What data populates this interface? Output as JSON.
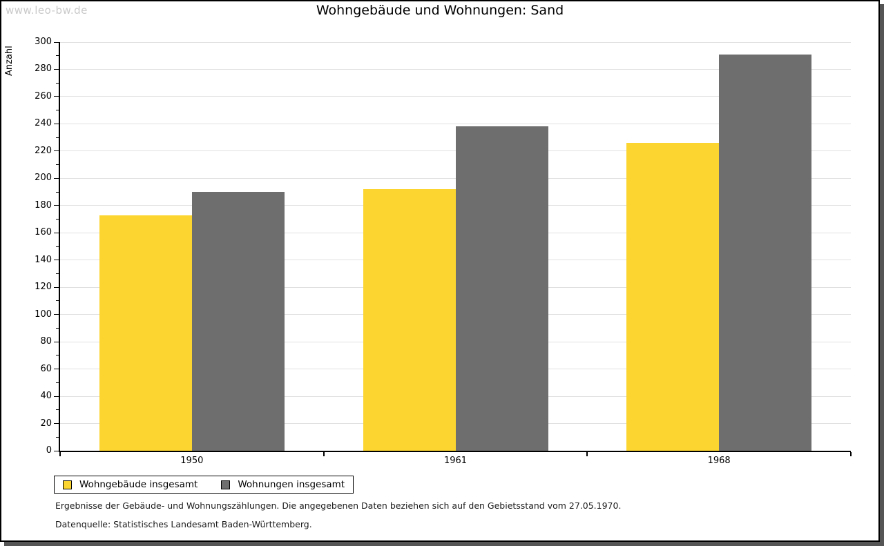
{
  "page": {
    "watermark": "www.leo-bw.de"
  },
  "chart_data": {
    "type": "bar",
    "title": "Wohngebäude und Wohnungen: Sand",
    "categories": [
      "1950",
      "1961",
      "1968"
    ],
    "series": [
      {
        "name": "Wohngebäude insgesamt",
        "color": "#fcd530",
        "values": [
          173,
          192,
          226
        ]
      },
      {
        "name": "Wohnungen insgesamt",
        "color": "#6e6e6e",
        "values": [
          190,
          238,
          291
        ]
      }
    ],
    "xlabel": "",
    "ylabel": "Anzahl",
    "ylim": [
      0,
      300
    ],
    "ytick_major": 20,
    "ytick_minor": 10,
    "grid": true,
    "grid_color": "#e0e0e0",
    "legend_position": "bottom-left"
  },
  "footer": {
    "note": "Ergebnisse der Gebäude- und Wohnungszählungen. Die angegebenen Daten beziehen sich auf den Gebietsstand vom 27.05.1970.",
    "source": "Datenquelle: Statistisches Landesamt Baden-Württemberg."
  }
}
